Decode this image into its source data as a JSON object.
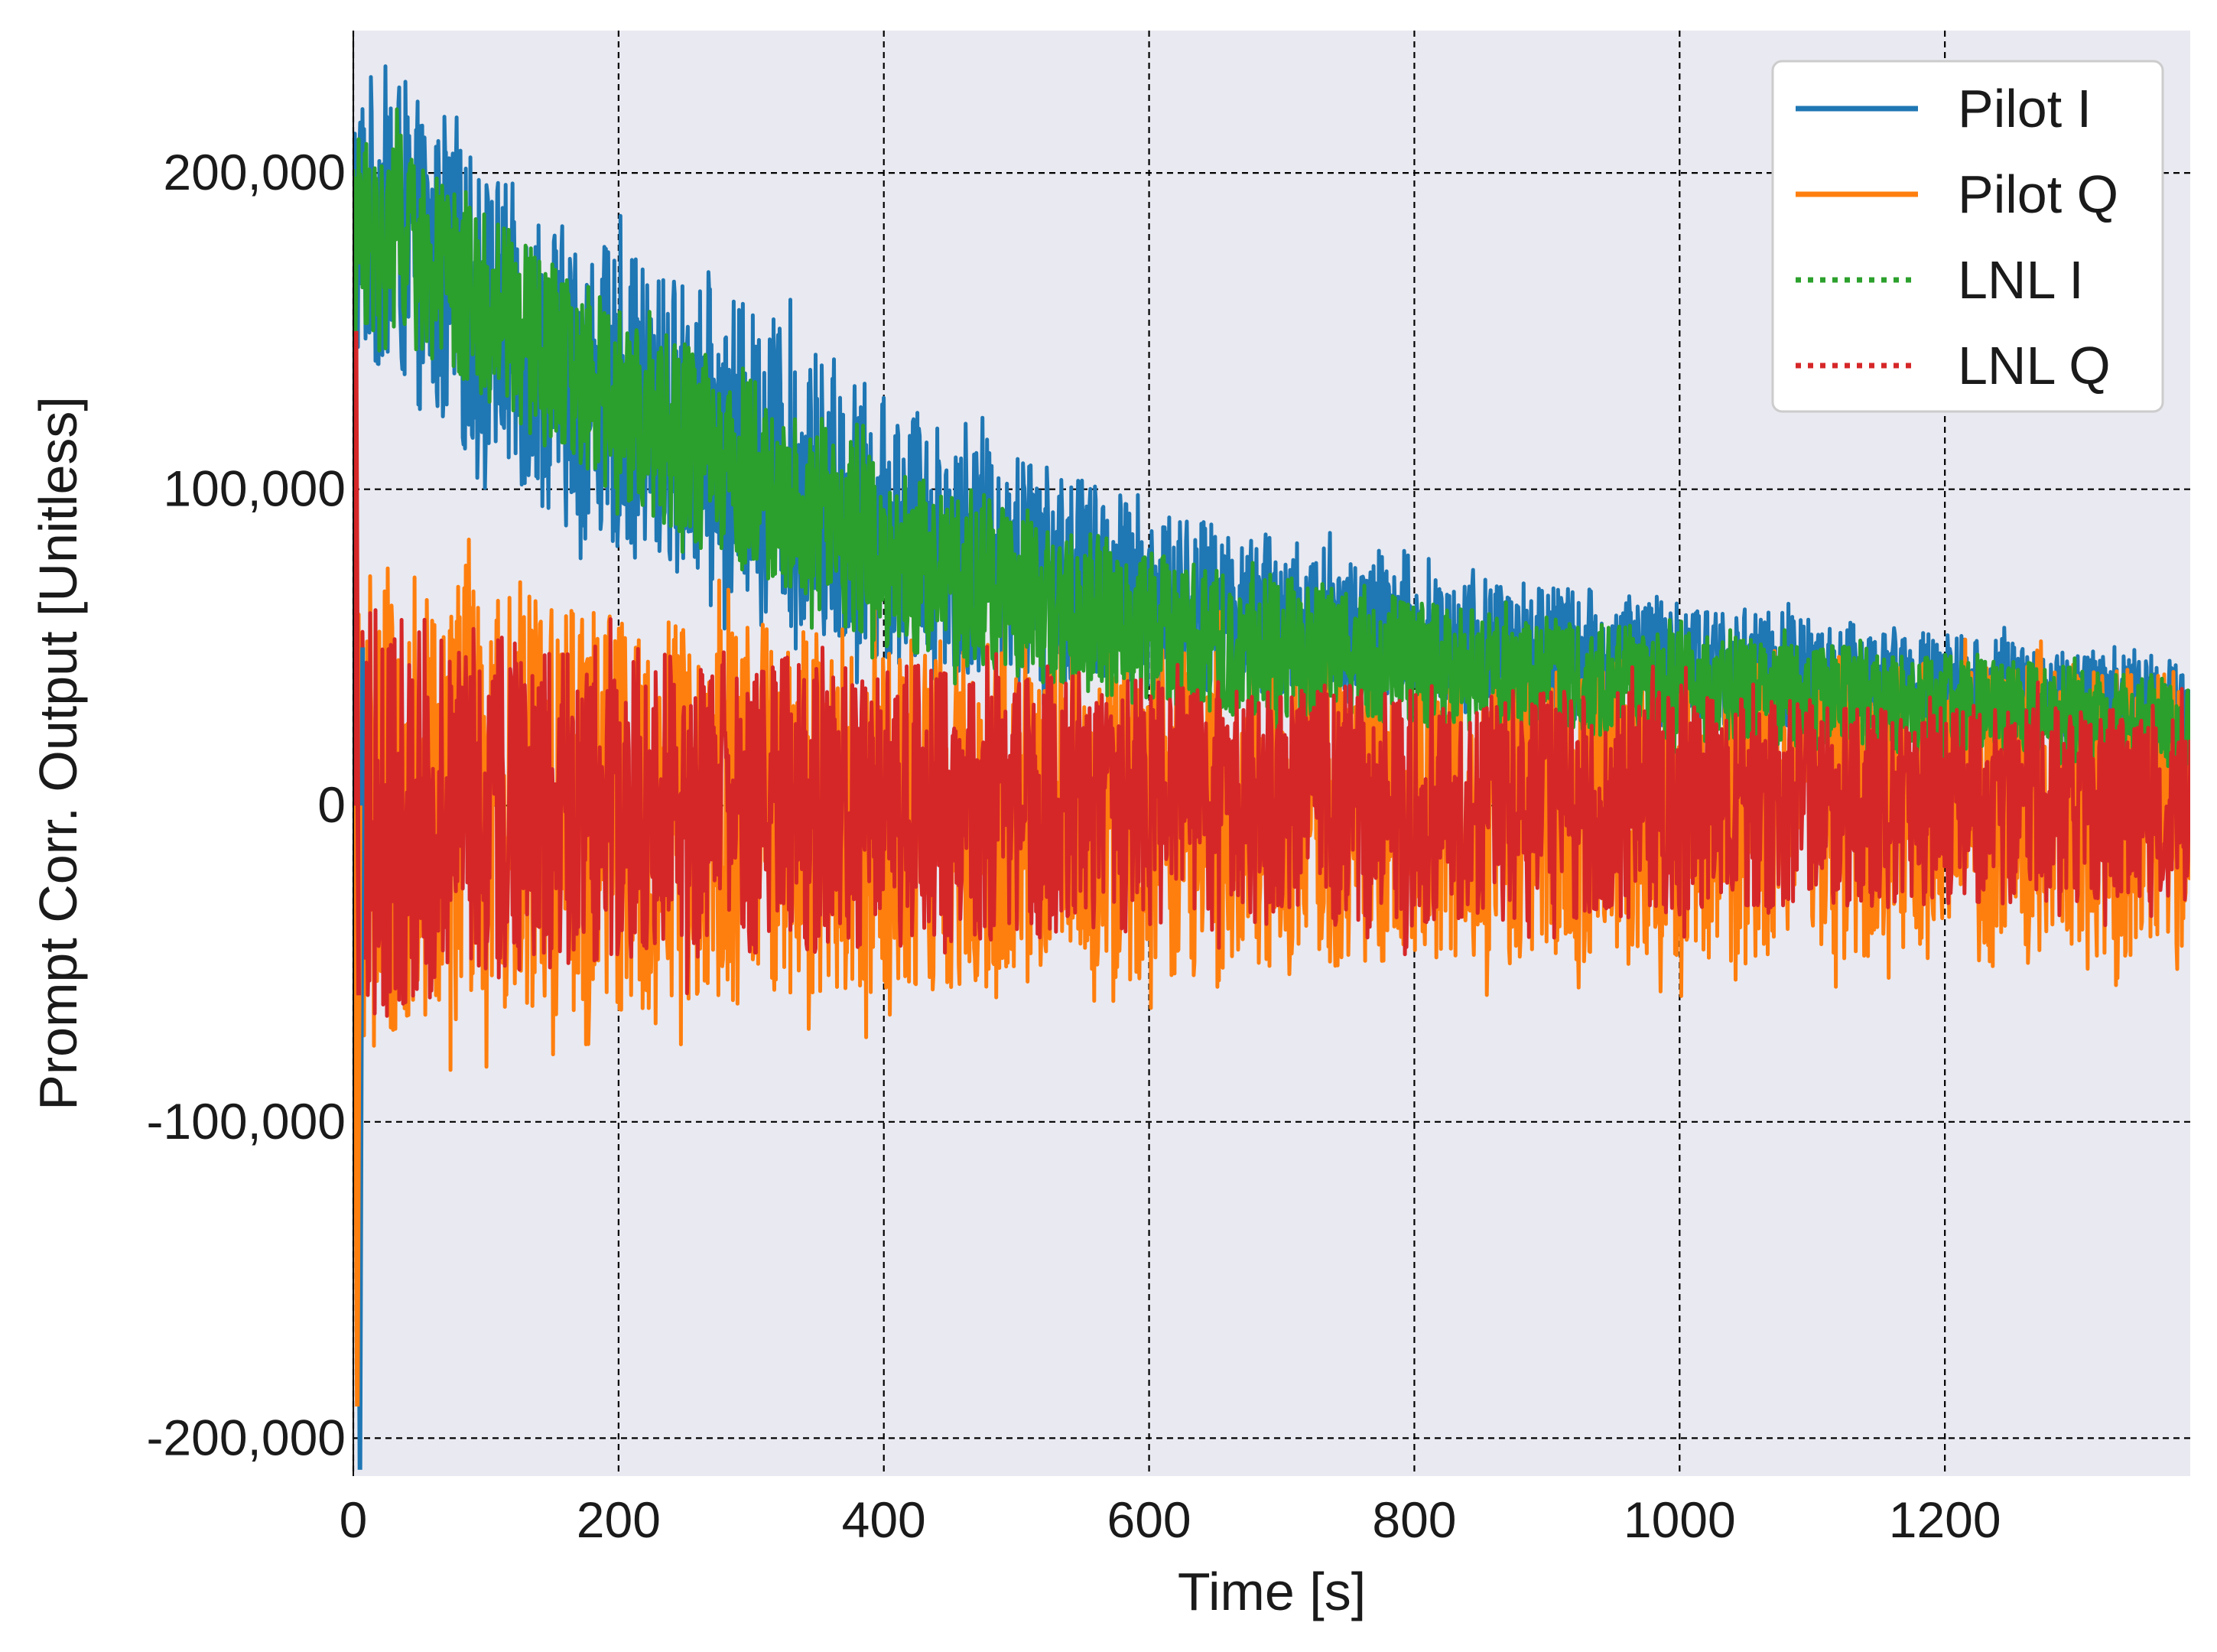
{
  "chart_data": {
    "type": "line",
    "title": "",
    "xlabel": "Time [s]",
    "ylabel": "Prompt Corr. Output [Unitless]",
    "xlim": [
      0,
      1385
    ],
    "ylim": [
      -212000,
      245000
    ],
    "x_ticks": [
      0,
      200,
      400,
      600,
      800,
      1000,
      1200
    ],
    "x_tick_labels": [
      "0",
      "200",
      "400",
      "600",
      "800",
      "1000",
      "1200"
    ],
    "y_ticks": [
      -200000,
      -100000,
      0,
      100000,
      200000
    ],
    "y_tick_labels": [
      "-200,000",
      "-100,000",
      "0",
      "100,000",
      "200,000"
    ],
    "grid": true,
    "legend_position": "top-right",
    "series": [
      {
        "name": "Pilot I",
        "color": "#1f77b4",
        "style": "solid",
        "description": "Noisy decaying envelope",
        "envelope_time": [
          0,
          30,
          60,
          110,
          170,
          230,
          290,
          400,
          600,
          800,
          1000,
          1200,
          1385
        ],
        "envelope_upper": [
          230000,
          235000,
          215000,
          200000,
          180000,
          170000,
          160000,
          130000,
          95000,
          75000,
          65000,
          55000,
          45000
        ],
        "envelope_lower": [
          140000,
          135000,
          120000,
          105000,
          85000,
          75000,
          65000,
          45000,
          35000,
          30000,
          25000,
          20000,
          15000
        ]
      },
      {
        "name": "Pilot Q",
        "color": "#ff7f0e",
        "style": "solid",
        "description": "Noise centered near zero",
        "envelope_time": [
          0,
          30,
          100,
          200,
          400,
          600,
          800,
          1000,
          1200,
          1385
        ],
        "envelope_upper": [
          80000,
          75000,
          70000,
          60000,
          55000,
          50000,
          45000,
          45000,
          45000,
          45000
        ],
        "envelope_lower": [
          -80000,
          -75000,
          -70000,
          -65000,
          -60000,
          -55000,
          -50000,
          -50000,
          -50000,
          -50000
        ]
      },
      {
        "name": "LNL I",
        "color": "#2ca02c",
        "style": "dotted",
        "description": "Noisy decaying envelope, slightly below Pilot I",
        "envelope_time": [
          0,
          30,
          60,
          110,
          170,
          230,
          290,
          400,
          600,
          800,
          1000,
          1200,
          1385
        ],
        "envelope_upper": [
          210000,
          215000,
          200000,
          185000,
          165000,
          150000,
          140000,
          110000,
          80000,
          65000,
          55000,
          48000,
          40000
        ],
        "envelope_lower": [
          150000,
          150000,
          140000,
          125000,
          105000,
          90000,
          75000,
          50000,
          30000,
          25000,
          20000,
          15000,
          10000
        ]
      },
      {
        "name": "LNL Q",
        "color": "#d62728",
        "style": "dotted",
        "description": "Dense noise centered near zero",
        "envelope_time": [
          0,
          30,
          100,
          200,
          400,
          600,
          800,
          1000,
          1200,
          1385
        ],
        "envelope_upper": [
          70000,
          65000,
          55000,
          50000,
          45000,
          40000,
          38000,
          35000,
          32000,
          30000
        ],
        "envelope_lower": [
          -70000,
          -65000,
          -55000,
          -50000,
          -45000,
          -40000,
          -38000,
          -35000,
          -32000,
          -30000
        ]
      }
    ],
    "transient": {
      "description": "Short start-up transient near t=0",
      "pilot_i_min": -210000,
      "pilot_q_min": -190000,
      "lnl_q_max": 150000
    }
  }
}
